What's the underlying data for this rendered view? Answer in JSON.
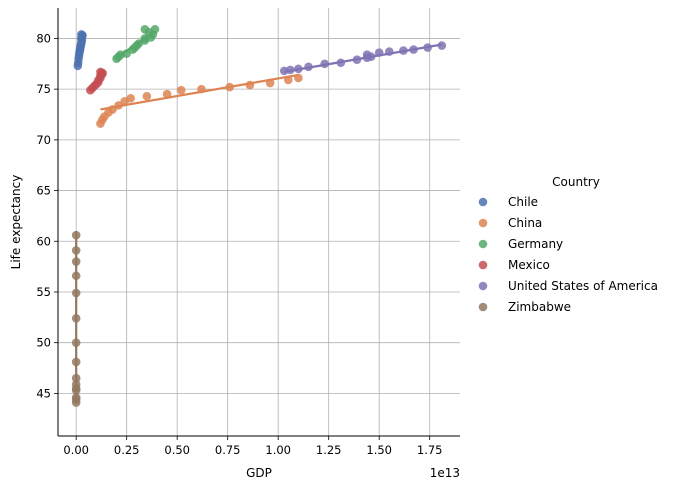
{
  "chart_data": {
    "type": "scatter",
    "xlabel": "GDP",
    "ylabel": "Life expectancy",
    "x_offset_label": "1e13",
    "x_scale_exponent": 13,
    "xlim": [
      -0.09,
      1.9
    ],
    "ylim": [
      40.8,
      83
    ],
    "x_ticks": [
      0.0,
      0.25,
      0.5,
      0.75,
      1.0,
      1.25,
      1.5,
      1.75
    ],
    "x_tick_labels": [
      "0.00",
      "0.25",
      "0.50",
      "0.75",
      "1.00",
      "1.25",
      "1.50",
      "1.75"
    ],
    "y_ticks": [
      45,
      50,
      55,
      60,
      65,
      70,
      75,
      80
    ],
    "y_tick_labels": [
      "45",
      "50",
      "55",
      "60",
      "65",
      "70",
      "75",
      "80"
    ],
    "grid": true,
    "legend_title": "Country",
    "legend_position": "right",
    "series": [
      {
        "name": "Chile",
        "color": "#4c72b0",
        "points": [
          [
            0.008,
            77.3
          ],
          [
            0.01,
            77.6
          ],
          [
            0.012,
            78.0
          ],
          [
            0.014,
            78.3
          ],
          [
            0.016,
            78.6
          ],
          [
            0.018,
            78.8
          ],
          [
            0.02,
            79.0
          ],
          [
            0.022,
            79.2
          ],
          [
            0.024,
            79.4
          ],
          [
            0.026,
            79.6
          ],
          [
            0.028,
            79.8
          ],
          [
            0.025,
            80.0
          ],
          [
            0.03,
            80.2
          ],
          [
            0.026,
            80.4
          ],
          [
            0.031,
            80.3
          ]
        ],
        "fit": [
          [
            0.008,
            77.2
          ],
          [
            0.031,
            80.5
          ]
        ]
      },
      {
        "name": "China",
        "color": "#dd8452",
        "points": [
          [
            0.12,
            71.6
          ],
          [
            0.13,
            72.0
          ],
          [
            0.14,
            72.3
          ],
          [
            0.16,
            72.7
          ],
          [
            0.18,
            73.0
          ],
          [
            0.21,
            73.4
          ],
          [
            0.24,
            73.8
          ],
          [
            0.27,
            74.1
          ],
          [
            0.35,
            74.3
          ],
          [
            0.45,
            74.5
          ],
          [
            0.52,
            74.9
          ],
          [
            0.62,
            75.0
          ],
          [
            0.76,
            75.2
          ],
          [
            0.86,
            75.4
          ],
          [
            0.96,
            75.6
          ],
          [
            1.05,
            75.9
          ],
          [
            1.1,
            76.1
          ]
        ],
        "fit": [
          [
            0.12,
            73.0
          ],
          [
            1.1,
            76.4
          ]
        ]
      },
      {
        "name": "Germany",
        "color": "#55a868",
        "points": [
          [
            0.2,
            78.0
          ],
          [
            0.21,
            78.2
          ],
          [
            0.22,
            78.4
          ],
          [
            0.25,
            78.5
          ],
          [
            0.28,
            78.9
          ],
          [
            0.29,
            79.1
          ],
          [
            0.3,
            79.3
          ],
          [
            0.31,
            79.5
          ],
          [
            0.34,
            79.8
          ],
          [
            0.34,
            80.0
          ],
          [
            0.37,
            80.1
          ],
          [
            0.38,
            80.4
          ],
          [
            0.36,
            80.6
          ],
          [
            0.34,
            80.9
          ],
          [
            0.39,
            80.9
          ]
        ],
        "fit": [
          [
            0.2,
            78.1
          ],
          [
            0.39,
            80.7
          ]
        ]
      },
      {
        "name": "Mexico",
        "color": "#c44e52",
        "points": [
          [
            0.07,
            74.9
          ],
          [
            0.08,
            75.1
          ],
          [
            0.09,
            75.3
          ],
          [
            0.1,
            75.5
          ],
          [
            0.11,
            75.7
          ],
          [
            0.11,
            75.9
          ],
          [
            0.12,
            76.1
          ],
          [
            0.12,
            76.3
          ],
          [
            0.13,
            76.5
          ],
          [
            0.13,
            76.6
          ],
          [
            0.12,
            76.7
          ]
        ],
        "fit": [
          [
            0.07,
            74.8
          ],
          [
            0.13,
            76.7
          ]
        ]
      },
      {
        "name": "United States of America",
        "color": "#8172b3",
        "points": [
          [
            1.03,
            76.8
          ],
          [
            1.06,
            76.9
          ],
          [
            1.1,
            77.0
          ],
          [
            1.15,
            77.2
          ],
          [
            1.23,
            77.5
          ],
          [
            1.31,
            77.6
          ],
          [
            1.39,
            77.9
          ],
          [
            1.44,
            78.1
          ],
          [
            1.46,
            78.2
          ],
          [
            1.44,
            78.4
          ],
          [
            1.5,
            78.6
          ],
          [
            1.55,
            78.7
          ],
          [
            1.62,
            78.8
          ],
          [
            1.67,
            78.9
          ],
          [
            1.74,
            79.1
          ],
          [
            1.81,
            79.3
          ]
        ],
        "fit": [
          [
            1.03,
            76.7
          ],
          [
            1.81,
            79.4
          ]
        ]
      },
      {
        "name": "Zimbabwe",
        "color": "#937860",
        "points": [
          [
            0.0,
            44.1
          ],
          [
            0.0,
            44.4
          ],
          [
            0.0,
            44.6
          ],
          [
            0.0,
            45.3
          ],
          [
            0.0,
            45.5
          ],
          [
            0.0,
            45.9
          ],
          [
            0.0,
            46.5
          ],
          [
            0.0,
            48.1
          ],
          [
            0.0,
            50.0
          ],
          [
            0.0,
            52.4
          ],
          [
            0.0,
            54.9
          ],
          [
            0.0,
            56.6
          ],
          [
            0.0,
            58.0
          ],
          [
            0.0,
            59.1
          ],
          [
            0.0,
            60.6
          ]
        ],
        "fit": [
          [
            0.0,
            44.0
          ],
          [
            0.0,
            61.0
          ]
        ]
      }
    ]
  }
}
